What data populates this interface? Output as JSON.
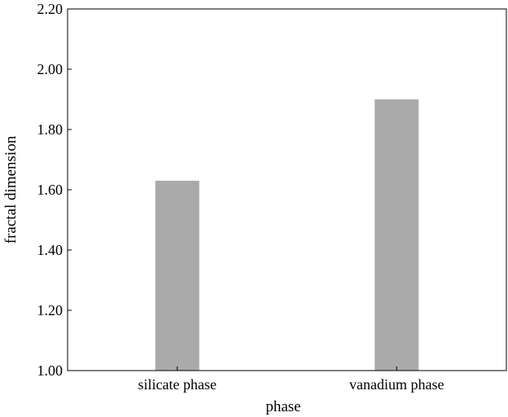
{
  "chart_data": {
    "type": "bar",
    "categories": [
      "silicate phase",
      "vanadium phase"
    ],
    "values": [
      1.63,
      1.9
    ],
    "xlabel": "phase",
    "ylabel": "fractal dimension",
    "ylim": [
      1.0,
      2.2
    ],
    "yticks": [
      "1.00",
      "1.20",
      "1.40",
      "1.60",
      "1.80",
      "2.00",
      "2.20"
    ],
    "bar_color": "#aaaaaa",
    "grid": false,
    "legend": "none"
  }
}
